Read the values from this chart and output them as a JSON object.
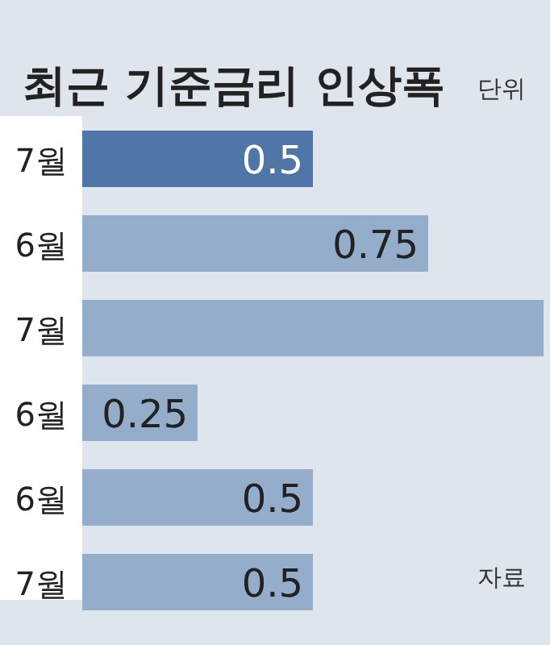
{
  "chart_data": {
    "type": "bar",
    "orientation": "horizontal",
    "title": "최근 기준금리 인상폭",
    "categories": [
      "7월",
      "6월",
      "7월",
      "6월",
      "6월",
      "7월"
    ],
    "values": [
      0.5,
      0.75,
      1,
      0.25,
      0.5,
      0.5
    ],
    "value_labels": [
      "0.5",
      "0.75",
      null,
      "0.25",
      "0.5",
      "0.5"
    ],
    "colors": [
      "#4f76a6",
      "#93adcb",
      "#93adcb",
      "#93adcb",
      "#93adcb",
      "#93adcb"
    ],
    "annotations": [
      "단위",
      "자료"
    ]
  }
}
